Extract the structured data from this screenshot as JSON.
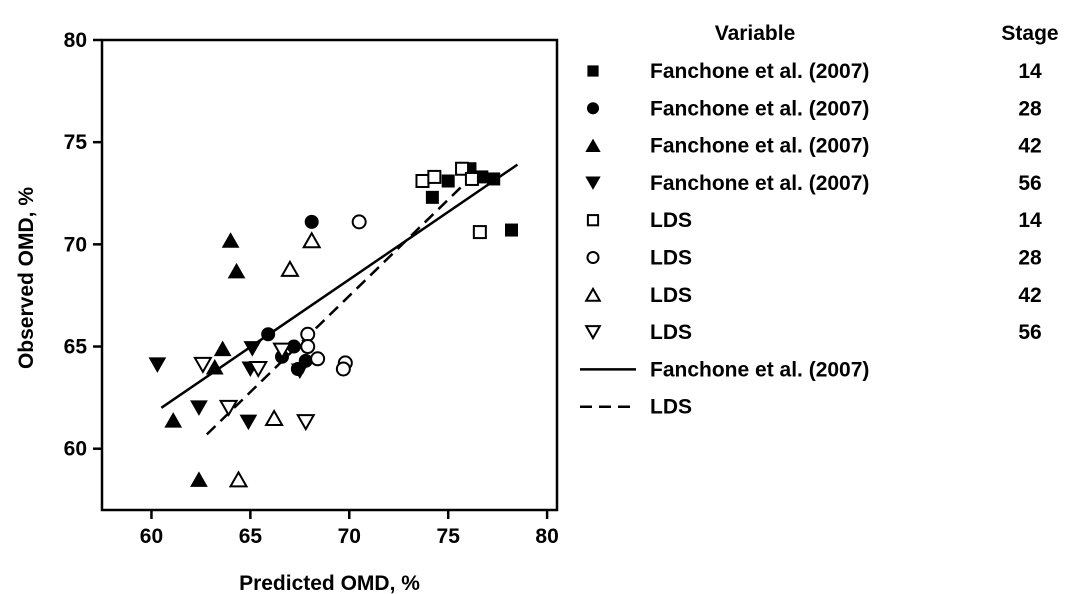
{
  "chart_data": {
    "type": "scatter",
    "xlabel": "Predicted OMD, %",
    "ylabel": "Observed OMD, %",
    "xlim": [
      57.5,
      80.5
    ],
    "ylim": [
      57,
      80
    ],
    "xticks": [
      60,
      65,
      70,
      75,
      80
    ],
    "yticks": [
      60,
      65,
      70,
      75,
      80
    ],
    "grid": false,
    "legend": {
      "placement": "right",
      "header_variable": "Variable",
      "header_stage": "Stage",
      "entries": [
        {
          "marker": "square-filled",
          "label": "Fanchone et al. (2007)",
          "stage": "14"
        },
        {
          "marker": "circle-filled",
          "label": "Fanchone et al. (2007)",
          "stage": "28"
        },
        {
          "marker": "triangle-up-filled",
          "label": "Fanchone et al. (2007)",
          "stage": "42"
        },
        {
          "marker": "triangle-down-filled",
          "label": "Fanchone et al. (2007)",
          "stage": "56"
        },
        {
          "marker": "square-open",
          "label": "LDS",
          "stage": "14"
        },
        {
          "marker": "circle-open",
          "label": "LDS",
          "stage": "28"
        },
        {
          "marker": "triangle-up-open",
          "label": "LDS",
          "stage": "42"
        },
        {
          "marker": "triangle-down-open",
          "label": "LDS",
          "stage": "56"
        },
        {
          "marker": "line-solid",
          "label": "Fanchone et al. (2007)",
          "stage": ""
        },
        {
          "marker": "line-dashed",
          "label": "LDS",
          "stage": ""
        }
      ]
    },
    "series": [
      {
        "marker": "square-filled",
        "points": [
          [
            74.2,
            72.3
          ],
          [
            75.0,
            73.1
          ],
          [
            76.1,
            73.7
          ],
          [
            76.7,
            73.3
          ],
          [
            77.3,
            73.2
          ],
          [
            78.2,
            70.7
          ]
        ]
      },
      {
        "marker": "circle-filled",
        "points": [
          [
            65.9,
            65.6
          ],
          [
            66.6,
            64.5
          ],
          [
            67.2,
            65.0
          ],
          [
            67.8,
            64.3
          ],
          [
            67.4,
            63.9
          ],
          [
            68.1,
            71.1
          ]
        ]
      },
      {
        "marker": "triangle-up-filled",
        "points": [
          [
            64.0,
            70.2
          ],
          [
            64.3,
            68.7
          ],
          [
            63.6,
            64.9
          ],
          [
            63.2,
            64.0
          ],
          [
            61.1,
            61.4
          ],
          [
            62.4,
            58.5
          ]
        ]
      },
      {
        "marker": "triangle-down-filled",
        "points": [
          [
            60.3,
            64.1
          ],
          [
            62.4,
            62.0
          ],
          [
            64.9,
            61.3
          ],
          [
            65.1,
            64.9
          ],
          [
            65.0,
            63.9
          ],
          [
            67.5,
            63.8
          ]
        ]
      },
      {
        "marker": "square-open",
        "points": [
          [
            73.7,
            73.1
          ],
          [
            74.3,
            73.3
          ],
          [
            75.7,
            73.7
          ],
          [
            76.2,
            73.2
          ],
          [
            76.6,
            70.6
          ]
        ]
      },
      {
        "marker": "circle-open",
        "points": [
          [
            70.5,
            71.1
          ],
          [
            67.9,
            65.6
          ],
          [
            67.9,
            65.0
          ],
          [
            68.4,
            64.4
          ],
          [
            69.8,
            64.2
          ],
          [
            69.7,
            63.9
          ]
        ]
      },
      {
        "marker": "triangle-up-open",
        "points": [
          [
            68.1,
            70.2
          ],
          [
            67.0,
            68.8
          ],
          [
            66.2,
            61.5
          ],
          [
            64.4,
            58.5
          ]
        ]
      },
      {
        "marker": "triangle-down-open",
        "points": [
          [
            62.6,
            64.1
          ],
          [
            63.9,
            62.0
          ],
          [
            65.4,
            63.9
          ],
          [
            66.6,
            64.8
          ],
          [
            67.8,
            61.3
          ]
        ]
      }
    ],
    "regression_lines": [
      {
        "style": "solid",
        "points": [
          [
            60.5,
            62.0
          ],
          [
            78.5,
            73.9
          ]
        ]
      },
      {
        "style": "dashed",
        "points": [
          [
            62.8,
            60.7
          ],
          [
            76.5,
            73.6
          ]
        ]
      }
    ]
  }
}
